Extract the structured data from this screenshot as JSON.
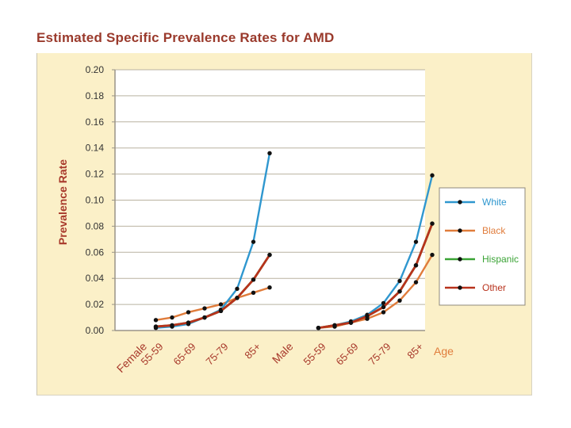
{
  "title": "Estimated Specific Prevalence Rates for AMD",
  "colors": {
    "panel_bg": "#fbf0c8",
    "plot_bg": "#ffffff",
    "grid": "#b9b2a0",
    "axis": "#9a9488",
    "tick_text": "#333333",
    "label_red": "#a8392b",
    "label_orange": "#e07c3b"
  },
  "chart_data": {
    "type": "line",
    "title": "Estimated Specific Prevalence Rates for AMD",
    "xlabel": "Age",
    "ylabel": "Prevalence Rate",
    "ylim": [
      0,
      0.2
    ],
    "yticks": [
      "0.20",
      "0.18",
      "0.16",
      "0.14",
      "0.12",
      "0.10",
      "0.08",
      "0.06",
      "0.04",
      "0.02",
      "0.00"
    ],
    "grid": true,
    "legend_position": "right",
    "x_labels": [
      "Female",
      "55-59",
      "65-69",
      "75-79",
      "85+",
      "Male",
      "55-59",
      "65-69",
      "75-79",
      "85+"
    ],
    "x_label_positions": [
      0,
      1,
      3,
      5,
      7,
      9,
      11,
      13,
      15,
      17
    ],
    "groups": [
      {
        "name": "Female",
        "x": [
          1,
          2,
          3,
          4,
          5,
          6,
          7,
          8
        ],
        "series": [
          {
            "name": "White",
            "color": "#2f97cf",
            "values": [
              0.002,
              0.003,
              0.005,
              0.01,
              0.016,
              0.032,
              0.068,
              0.136
            ]
          },
          {
            "name": "Black",
            "color": "#e07c3b",
            "values": [
              0.008,
              0.01,
              0.014,
              0.017,
              0.02,
              0.025,
              0.029,
              0.033
            ]
          },
          {
            "name": "Hispanic",
            "color": "#3aa335",
            "values": [
              0.003,
              0.004,
              0.006,
              0.01,
              0.015,
              0.025,
              0.039,
              0.058
            ]
          },
          {
            "name": "Other",
            "color": "#b8321c",
            "values": [
              0.003,
              0.004,
              0.006,
              0.01,
              0.015,
              0.025,
              0.039,
              0.058
            ]
          }
        ]
      },
      {
        "name": "Male",
        "x": [
          11,
          12,
          13,
          14,
          15,
          16,
          17,
          18
        ],
        "series": [
          {
            "name": "White",
            "color": "#2f97cf",
            "values": [
              0.002,
              0.004,
              0.007,
              0.012,
              0.021,
              0.038,
              0.068,
              0.119
            ]
          },
          {
            "name": "Black",
            "color": "#e07c3b",
            "values": [
              0.002,
              0.003,
              0.006,
              0.009,
              0.014,
              0.023,
              0.037,
              0.058
            ]
          },
          {
            "name": "Hispanic",
            "color": "#3aa335",
            "values": [
              0.002,
              0.004,
              0.006,
              0.011,
              0.018,
              0.03,
              0.05,
              0.082
            ]
          },
          {
            "name": "Other",
            "color": "#b8321c",
            "values": [
              0.002,
              0.004,
              0.006,
              0.011,
              0.018,
              0.03,
              0.05,
              0.082
            ]
          }
        ]
      }
    ],
    "legend": [
      {
        "name": "White",
        "color": "#2f97cf"
      },
      {
        "name": "Black",
        "color": "#e07c3b"
      },
      {
        "name": "Hispanic",
        "color": "#3aa335"
      },
      {
        "name": "Other",
        "color": "#b8321c"
      }
    ]
  }
}
